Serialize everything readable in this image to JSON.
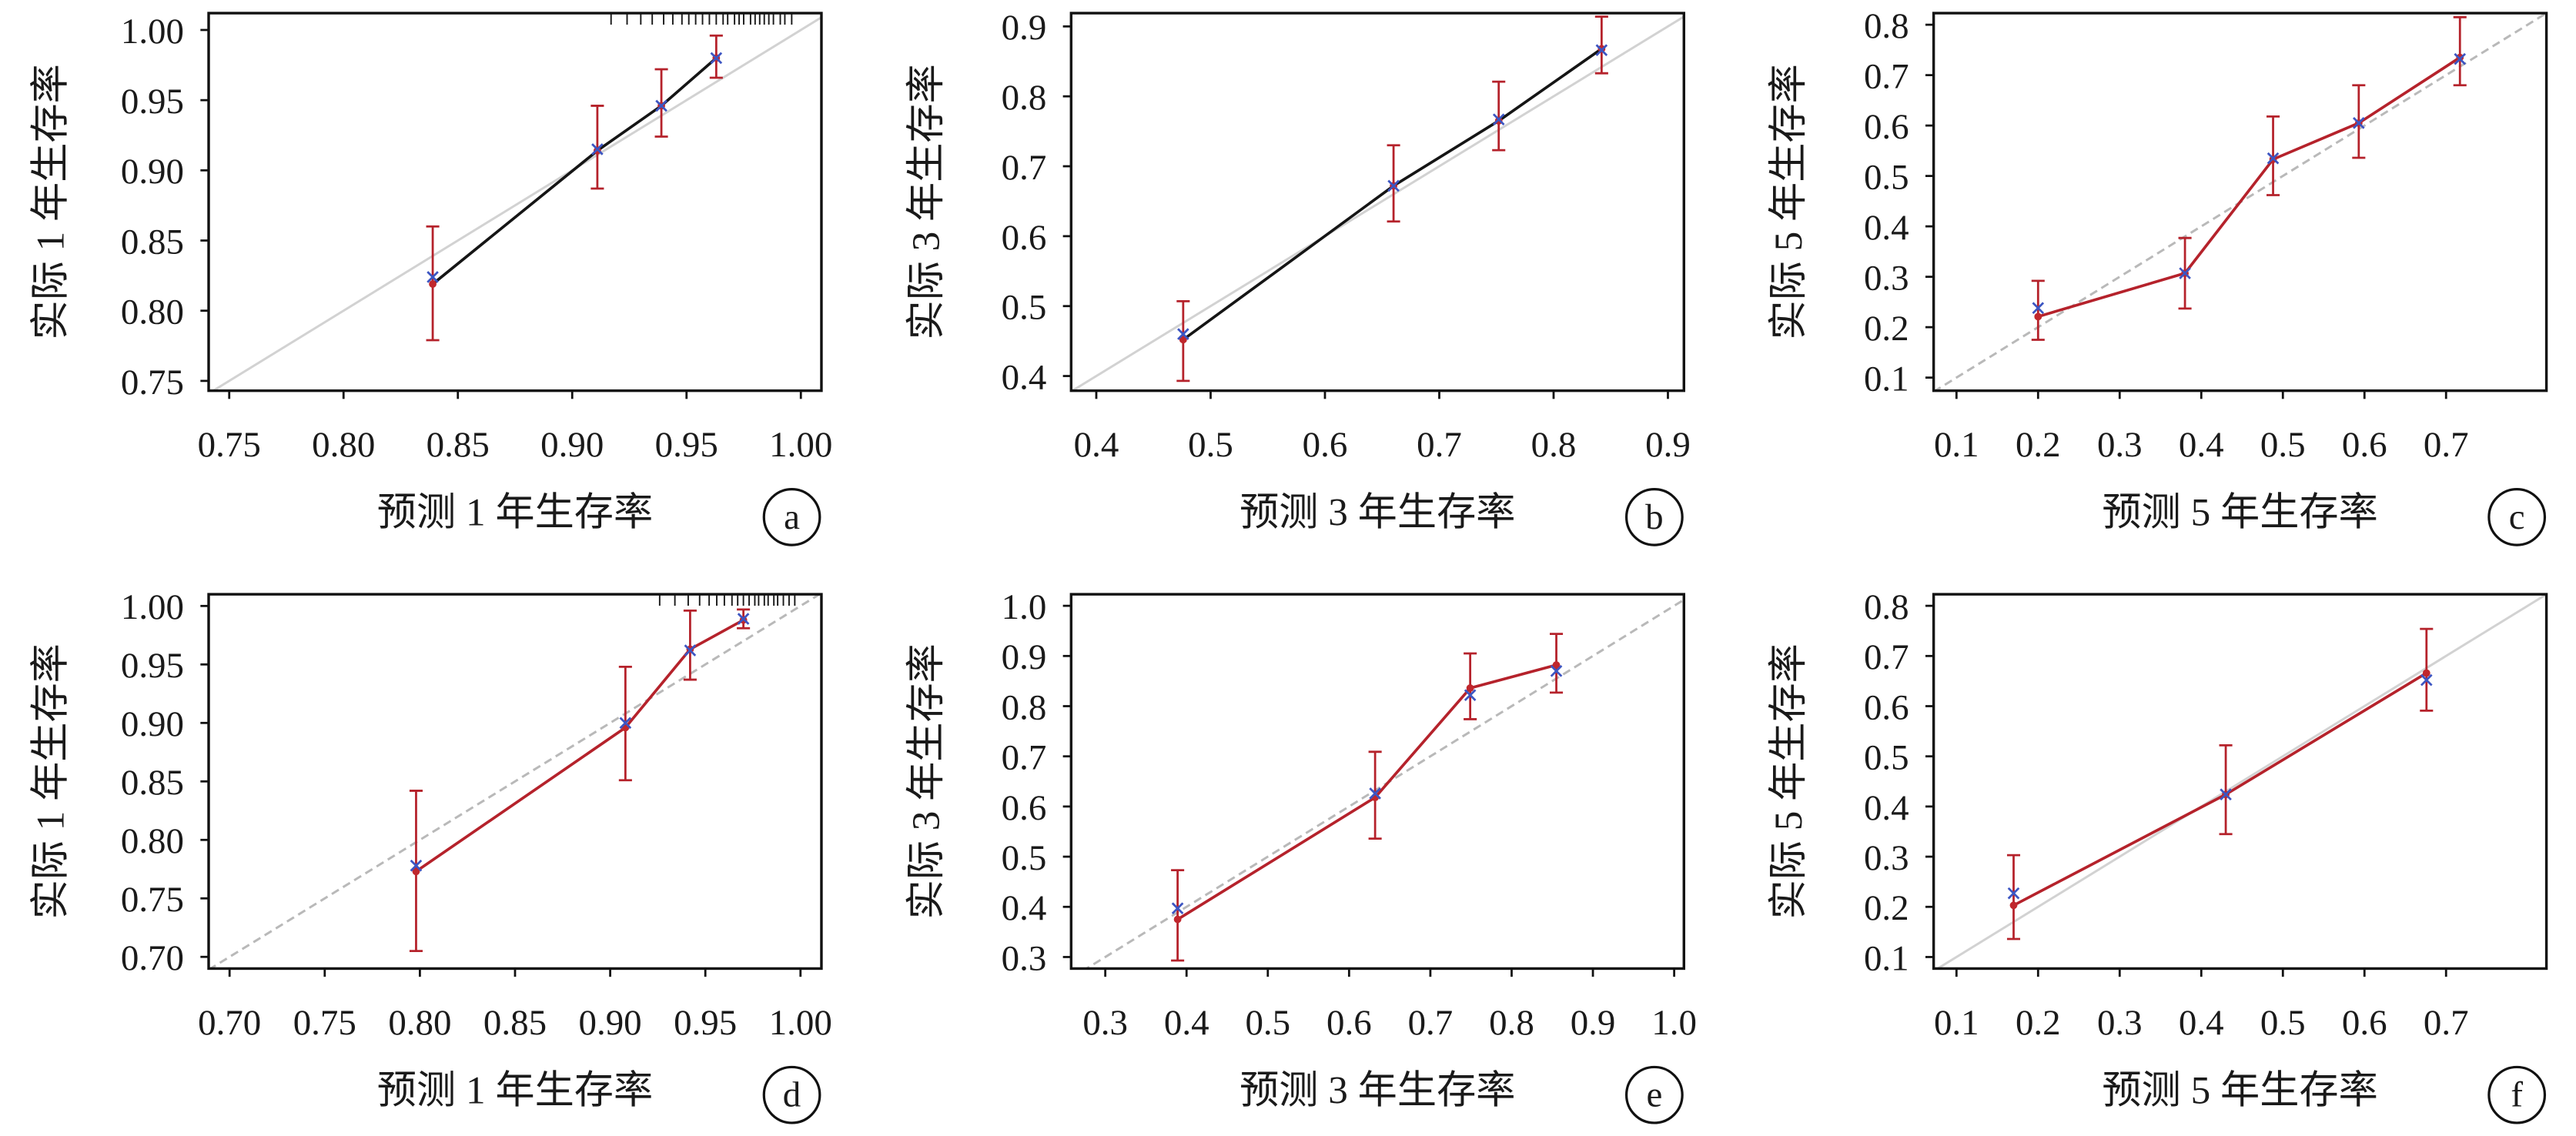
{
  "chart_data": [
    {
      "panel": "a",
      "type": "line",
      "xlabel": "预测 1 年生存率",
      "ylabel": "实际 1 年生存率",
      "xlim": [
        0.741,
        1.009
      ],
      "ylim": [
        0.743,
        1.012
      ],
      "xticks": [
        "0.75",
        "0.80",
        "0.85",
        "0.90",
        "0.95",
        "1.00"
      ],
      "yticks": [
        "0.75",
        "0.80",
        "0.85",
        "0.90",
        "0.95",
        "1.00"
      ],
      "grid": false,
      "reference_style": "solid",
      "colors": {
        "line": "#151515",
        "reference": "#d2d2d2",
        "point": "#c0272d",
        "error_bar": "#b5222b",
        "corrected": "#3c55c2"
      },
      "points": [
        {
          "x": 0.839,
          "y": 0.819,
          "corrected": 0.824,
          "lower": 0.779,
          "upper": 0.86
        },
        {
          "x": 0.911,
          "y": 0.914,
          "corrected": 0.915,
          "lower": 0.887,
          "upper": 0.946
        },
        {
          "x": 0.939,
          "y": 0.946,
          "corrected": 0.946,
          "lower": 0.924,
          "upper": 0.972
        },
        {
          "x": 0.963,
          "y": 0.98,
          "corrected": 0.98,
          "lower": 0.966,
          "upper": 0.996
        }
      ],
      "rug": [
        0.917,
        0.924,
        0.93,
        0.935,
        0.94,
        0.944,
        0.948,
        0.951,
        0.954,
        0.957,
        0.96,
        0.963,
        0.966,
        0.968,
        0.971,
        0.973,
        0.975,
        0.978,
        0.98,
        0.982,
        0.984,
        0.986,
        0.988,
        0.991,
        0.993,
        0.996
      ]
    },
    {
      "panel": "b",
      "type": "line",
      "xlabel": "预测 3 年生存率",
      "ylabel": "实际 3 年生存率",
      "xlim": [
        0.378,
        0.914
      ],
      "ylim": [
        0.379,
        0.919
      ],
      "xticks": [
        "0.4",
        "0.5",
        "0.6",
        "0.7",
        "0.8",
        "0.9"
      ],
      "yticks": [
        "0.4",
        "0.5",
        "0.6",
        "0.7",
        "0.8",
        "0.9"
      ],
      "grid": false,
      "reference_style": "solid",
      "colors": {
        "line": "#151515",
        "reference": "#d2d2d2",
        "point": "#c0272d",
        "error_bar": "#b5222b",
        "corrected": "#3c55c2"
      },
      "points": [
        {
          "x": 0.476,
          "y": 0.452,
          "corrected": 0.46,
          "lower": 0.393,
          "upper": 0.507
        },
        {
          "x": 0.66,
          "y": 0.672,
          "corrected": 0.672,
          "lower": 0.621,
          "upper": 0.73
        },
        {
          "x": 0.752,
          "y": 0.765,
          "corrected": 0.767,
          "lower": 0.723,
          "upper": 0.821
        },
        {
          "x": 0.842,
          "y": 0.868,
          "corrected": 0.866,
          "lower": 0.833,
          "upper": 0.914
        }
      ],
      "rug": []
    },
    {
      "panel": "c",
      "type": "line",
      "xlabel": "预测 5 年生存率",
      "ylabel": "实际 5 年生存率",
      "xlim": [
        0.072,
        0.823
      ],
      "ylim": [
        0.074,
        0.823
      ],
      "xticks": [
        "0.1",
        "0.2",
        "0.3",
        "0.4",
        "0.5",
        "0.6",
        "0.7"
      ],
      "yticks": [
        "0.1",
        "0.2",
        "0.3",
        "0.4",
        "0.5",
        "0.6",
        "0.7",
        "0.8"
      ],
      "grid": false,
      "reference_style": "dashed",
      "colors": {
        "line": "#b5222b",
        "reference": "#b9b9b9",
        "point": "#c0272d",
        "error_bar": "#b5222b",
        "corrected": "#3c55c2"
      },
      "points": [
        {
          "x": 0.2,
          "y": 0.221,
          "corrected": 0.238,
          "lower": 0.175,
          "upper": 0.292
        },
        {
          "x": 0.38,
          "y": 0.307,
          "corrected": 0.307,
          "lower": 0.237,
          "upper": 0.377
        },
        {
          "x": 0.488,
          "y": 0.533,
          "corrected": 0.535,
          "lower": 0.462,
          "upper": 0.618
        },
        {
          "x": 0.593,
          "y": 0.605,
          "corrected": 0.605,
          "lower": 0.536,
          "upper": 0.68
        },
        {
          "x": 0.717,
          "y": 0.735,
          "corrected": 0.732,
          "lower": 0.68,
          "upper": 0.815
        }
      ],
      "rug": []
    },
    {
      "panel": "d",
      "type": "line",
      "xlabel": "预测 1 年生存率",
      "ylabel": "实际 1 年生存率",
      "xlim": [
        0.689,
        1.011
      ],
      "ylim": [
        0.69,
        1.01
      ],
      "xticks": [
        "0.70",
        "0.75",
        "0.80",
        "0.85",
        "0.90",
        "0.95",
        "1.00"
      ],
      "yticks": [
        "0.70",
        "0.75",
        "0.80",
        "0.85",
        "0.90",
        "0.95",
        "1.00"
      ],
      "grid": false,
      "reference_style": "dashed",
      "colors": {
        "line": "#b5222b",
        "reference": "#b9b9b9",
        "point": "#c0272d",
        "error_bar": "#b5222b",
        "corrected": "#3c55c2"
      },
      "points": [
        {
          "x": 0.798,
          "y": 0.773,
          "corrected": 0.778,
          "lower": 0.705,
          "upper": 0.842
        },
        {
          "x": 0.908,
          "y": 0.896,
          "corrected": 0.9,
          "lower": 0.851,
          "upper": 0.948
        },
        {
          "x": 0.942,
          "y": 0.963,
          "corrected": 0.962,
          "lower": 0.937,
          "upper": 0.996
        },
        {
          "x": 0.97,
          "y": 0.988,
          "corrected": 0.989,
          "lower": 0.981,
          "upper": 0.997
        }
      ],
      "rug": [
        0.926,
        0.934,
        0.941,
        0.947,
        0.952,
        0.956,
        0.96,
        0.964,
        0.967,
        0.97,
        0.973,
        0.976,
        0.978,
        0.981,
        0.983,
        0.986,
        0.988,
        0.991,
        0.994,
        0.997
      ]
    },
    {
      "panel": "e",
      "type": "line",
      "xlabel": "预测 3 年生存率",
      "ylabel": "实际 3 年生存率",
      "xlim": [
        0.258,
        1.012
      ],
      "ylim": [
        0.277,
        1.023
      ],
      "xticks": [
        "0.3",
        "0.4",
        "0.5",
        "0.6",
        "0.7",
        "0.8",
        "0.9",
        "1.0"
      ],
      "yticks": [
        "0.3",
        "0.4",
        "0.5",
        "0.6",
        "0.7",
        "0.8",
        "0.9",
        "1.0"
      ],
      "grid": false,
      "reference_style": "dashed",
      "colors": {
        "line": "#b5222b",
        "reference": "#b9b9b9",
        "point": "#c0272d",
        "error_bar": "#b5222b",
        "corrected": "#3c55c2"
      },
      "points": [
        {
          "x": 0.389,
          "y": 0.375,
          "corrected": 0.397,
          "lower": 0.293,
          "upper": 0.473
        },
        {
          "x": 0.632,
          "y": 0.618,
          "corrected": 0.626,
          "lower": 0.536,
          "upper": 0.709
        },
        {
          "x": 0.749,
          "y": 0.836,
          "corrected": 0.822,
          "lower": 0.774,
          "upper": 0.905
        },
        {
          "x": 0.855,
          "y": 0.882,
          "corrected": 0.87,
          "lower": 0.827,
          "upper": 0.944
        }
      ],
      "rug": []
    },
    {
      "panel": "f",
      "type": "line",
      "xlabel": "预测 5 年生存率",
      "ylabel": "实际 5 年生存率",
      "xlim": [
        0.072,
        0.823
      ],
      "ylim": [
        0.077,
        0.823
      ],
      "xticks": [
        "0.1",
        "0.2",
        "0.3",
        "0.4",
        "0.5",
        "0.6",
        "0.7"
      ],
      "yticks": [
        "0.1",
        "0.2",
        "0.3",
        "0.4",
        "0.5",
        "0.6",
        "0.7",
        "0.8"
      ],
      "grid": false,
      "reference_style": "solid",
      "colors": {
        "line": "#b5222b",
        "reference": "#d2d2d2",
        "point": "#c0272d",
        "error_bar": "#b5222b",
        "corrected": "#3c55c2"
      },
      "points": [
        {
          "x": 0.17,
          "y": 0.203,
          "corrected": 0.227,
          "lower": 0.136,
          "upper": 0.303
        },
        {
          "x": 0.43,
          "y": 0.424,
          "corrected": 0.424,
          "lower": 0.345,
          "upper": 0.522
        },
        {
          "x": 0.676,
          "y": 0.666,
          "corrected": 0.652,
          "lower": 0.591,
          "upper": 0.754
        }
      ],
      "rug": []
    }
  ]
}
